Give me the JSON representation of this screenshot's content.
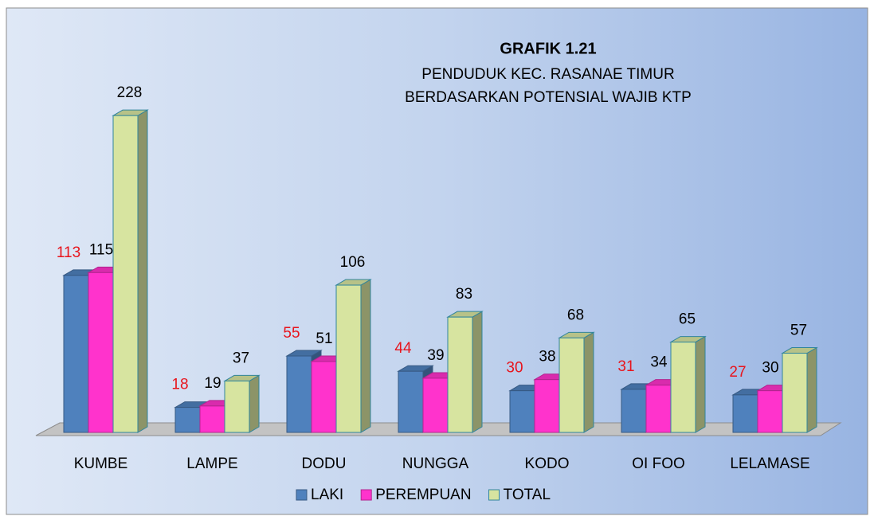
{
  "chart_data": {
    "type": "bar3d",
    "title": "GRAFIK 1.21",
    "subtitle": [
      "PENDUDUK KEC. RASANAE TIMUR",
      "BERDASARKAN POTENSIAL WAJIB KTP"
    ],
    "categories": [
      "KUMBE",
      "LAMPE",
      "DODU",
      "NUNGGA",
      "KODO",
      "OI FOO",
      "LELAMASE"
    ],
    "series": [
      {
        "name": "LAKI",
        "color": "#4f81bd",
        "label_color": "#e8141c",
        "values": [
          113,
          18,
          55,
          44,
          30,
          31,
          27
        ]
      },
      {
        "name": "PEREMPUAN",
        "color": "#ff33cc",
        "label_color": "#000000",
        "values": [
          115,
          19,
          51,
          39,
          38,
          34,
          30
        ]
      },
      {
        "name": "TOTAL",
        "color": "#d7e4a0",
        "label_color": "#000000",
        "values": [
          228,
          37,
          106,
          83,
          68,
          65,
          57
        ]
      }
    ],
    "legend": "bottom"
  }
}
